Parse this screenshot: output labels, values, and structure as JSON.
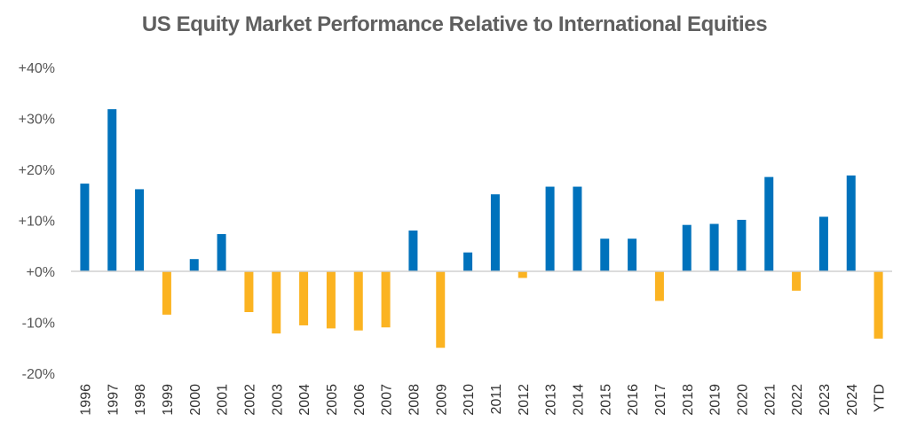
{
  "chart_data": {
    "type": "bar",
    "title": "US Equity Market Performance Relative to International Equities",
    "xlabel": "",
    "ylabel": "",
    "ylim": [
      -20,
      40
    ],
    "yticks": [
      40,
      30,
      20,
      10,
      0,
      -10,
      -20
    ],
    "ytick_labels": [
      "+40%",
      "+30%",
      "+20%",
      "+10%",
      "+0%",
      "-10%",
      "-20%"
    ],
    "grid": false,
    "legend": "none",
    "colors": {
      "positive": "#0072bc",
      "negative": "#fbb321",
      "axis": "#d0d0d0"
    },
    "categories": [
      "1996",
      "1997",
      "1998",
      "1999",
      "2000",
      "2001",
      "2002",
      "2003",
      "2004",
      "2005",
      "2006",
      "2007",
      "2008",
      "2009",
      "2010",
      "2011",
      "2012",
      "2013",
      "2014",
      "2015",
      "2016",
      "2017",
      "2018",
      "2019",
      "2020",
      "2021",
      "2022",
      "2023",
      "2024",
      "YTD"
    ],
    "values": [
      17.2,
      31.8,
      16.1,
      -8.5,
      2.4,
      7.3,
      -8.0,
      -12.2,
      -10.6,
      -11.2,
      -11.6,
      -11.0,
      8.0,
      -15.0,
      3.7,
      15.1,
      -1.3,
      16.6,
      16.6,
      6.4,
      6.4,
      -5.8,
      9.1,
      9.3,
      10.1,
      18.5,
      -3.8,
      10.7,
      18.8,
      -13.2
    ]
  }
}
